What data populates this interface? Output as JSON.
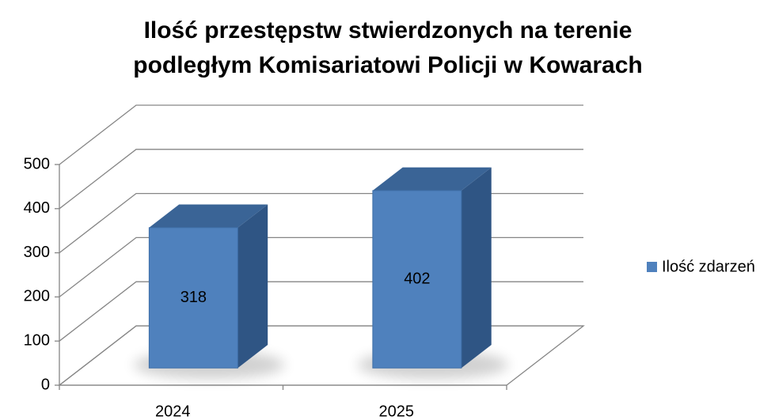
{
  "chart_data": {
    "type": "bar3d",
    "title": [
      "Ilość przestępstw stwierdzonych na terenie",
      "podległym Komisariatowi Policji w Kowarach"
    ],
    "categories": [
      "2024",
      "2025"
    ],
    "series": [
      {
        "name": "Ilość zdarzeń",
        "color": "#4f81bd",
        "values": [
          318,
          402
        ]
      }
    ],
    "ylim": [
      0,
      500
    ],
    "yticks": [
      0,
      100,
      200,
      300,
      400,
      500
    ],
    "grid": true,
    "legend": "right"
  }
}
